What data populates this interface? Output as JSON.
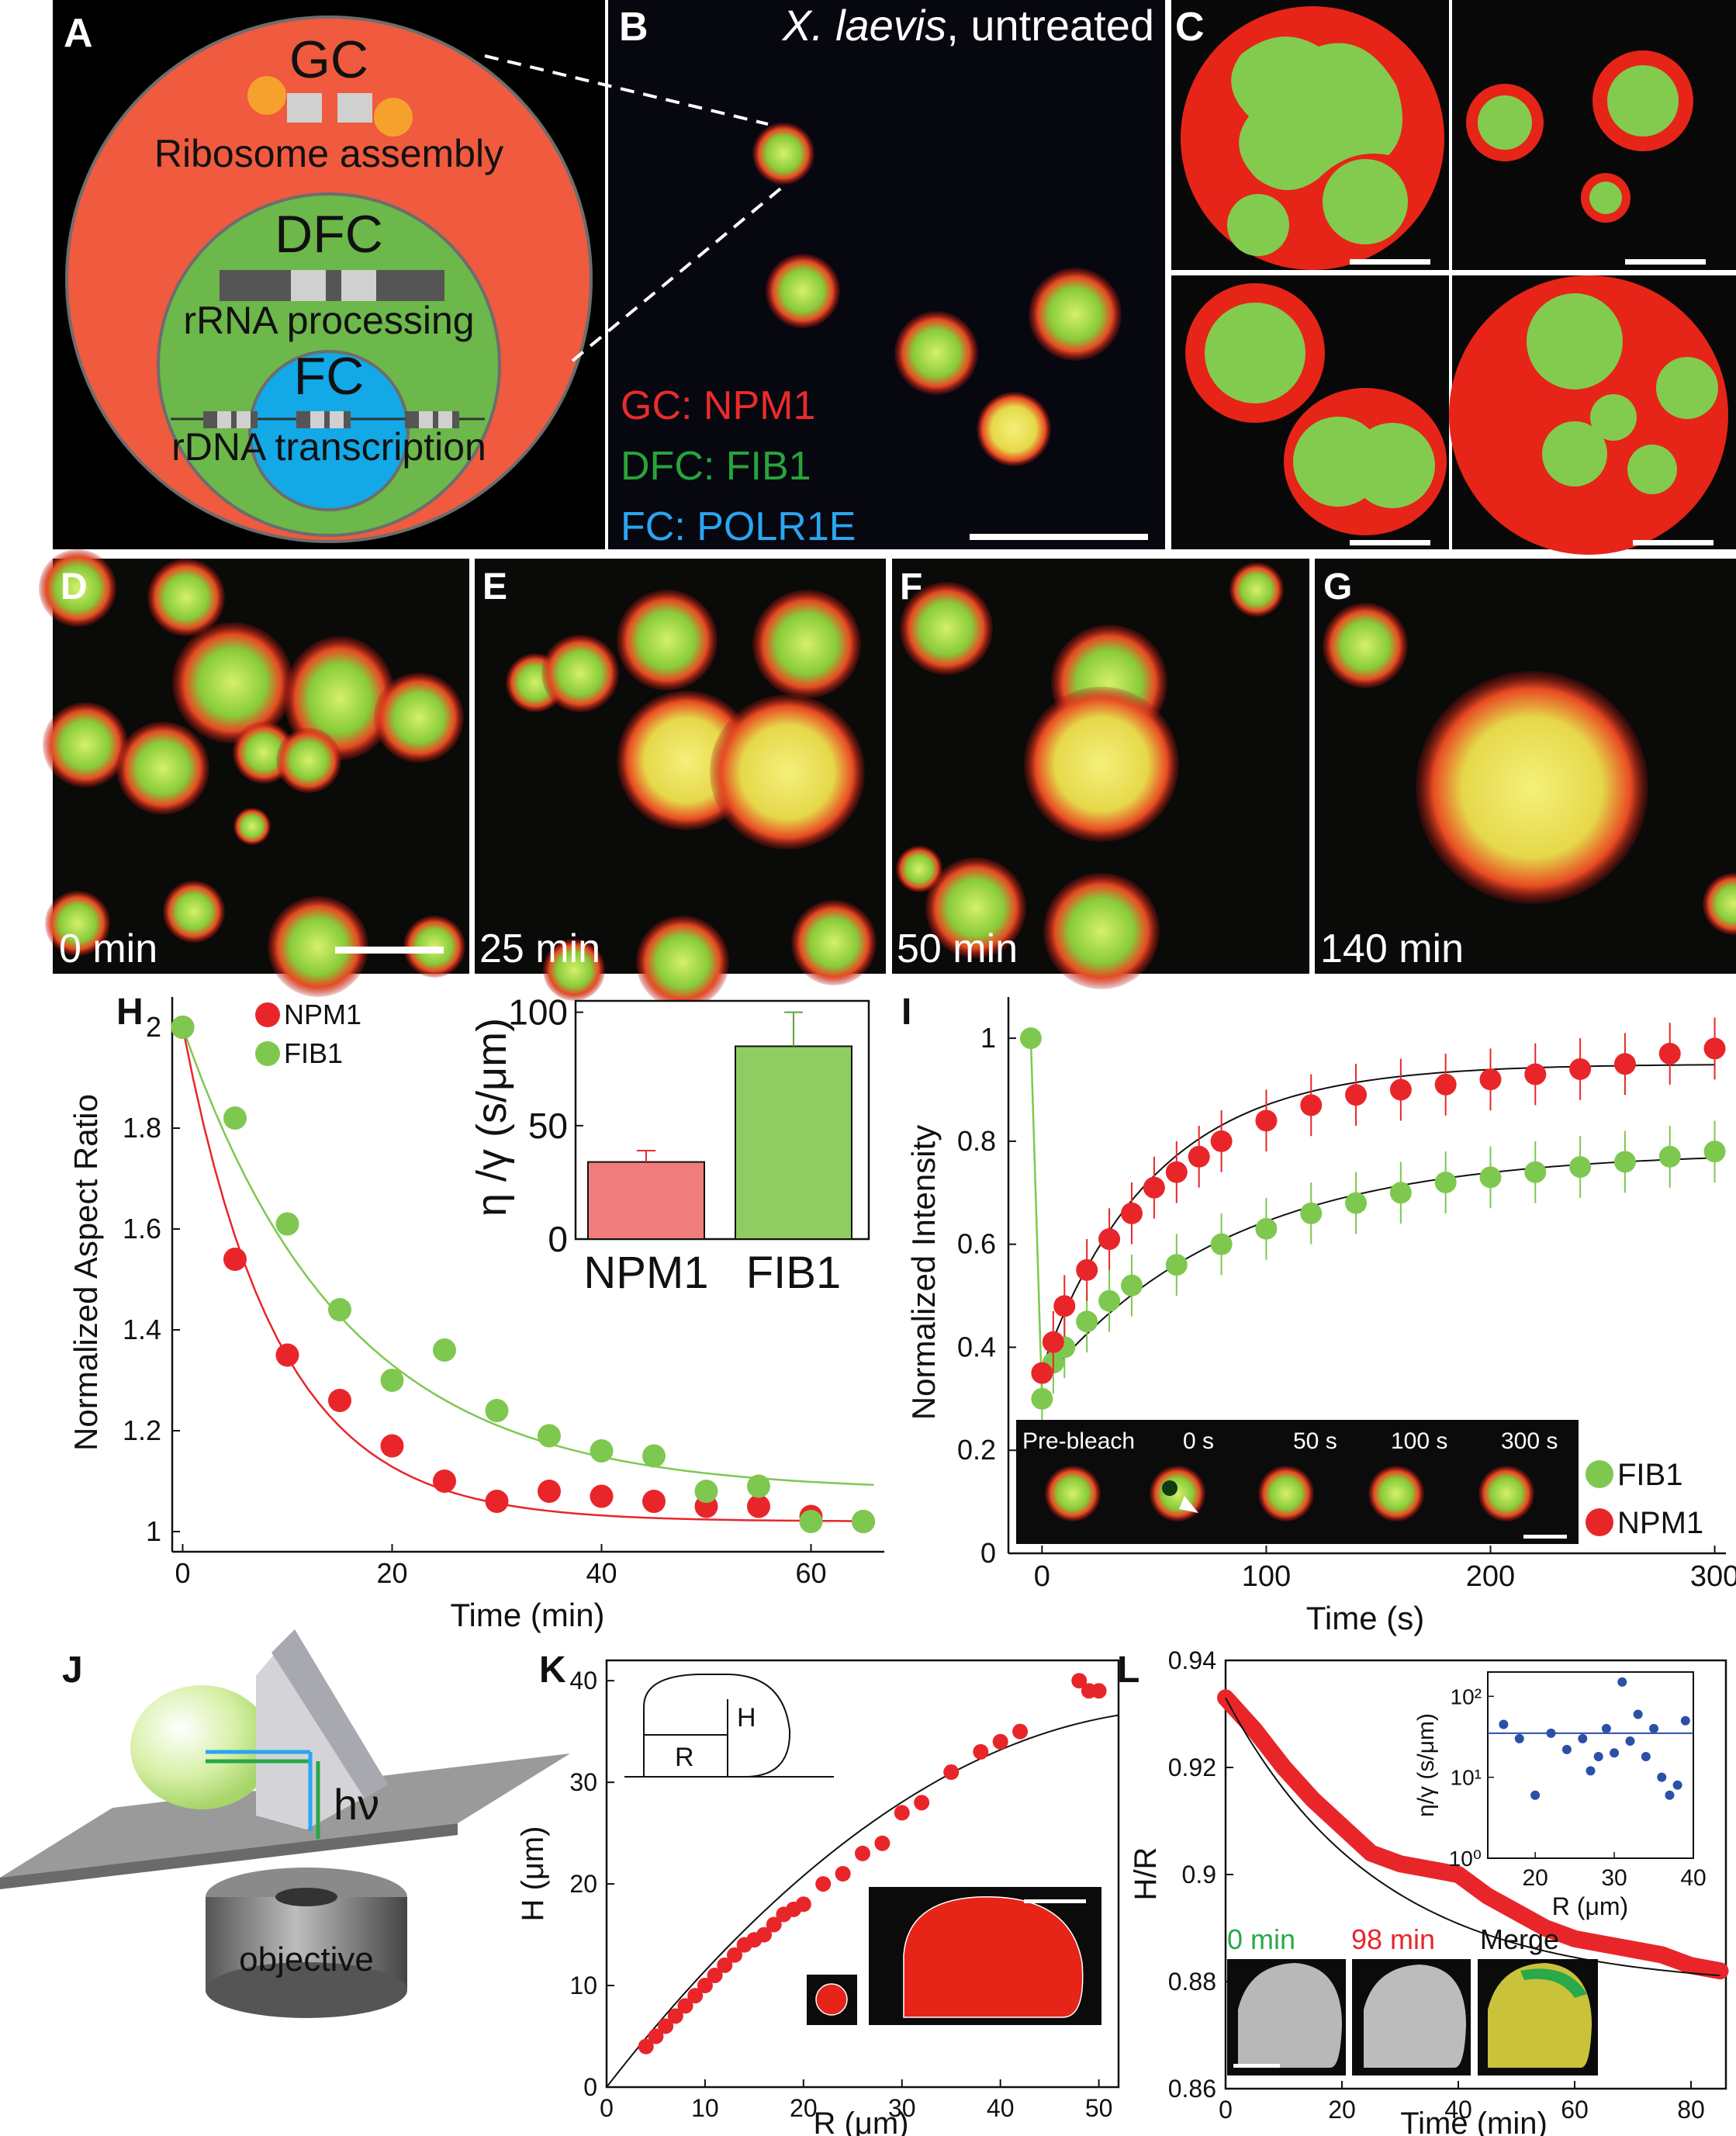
{
  "figure": {
    "letters": [
      "A",
      "B",
      "C",
      "D",
      "E",
      "F",
      "G",
      "H",
      "I",
      "J",
      "K",
      "L"
    ]
  },
  "panel_a": {
    "gc": "GC",
    "gc_sub": "Ribosome assembly",
    "dfc": "DFC",
    "dfc_sub": "rRNA processing",
    "fc": "FC",
    "fc_sub": "rDNA transcription",
    "colors": {
      "gc": "#f05a3e",
      "dfc": "#6cb84a",
      "fc": "#13a8e6"
    }
  },
  "panel_b": {
    "title_italic": "X. laevis",
    "title_rest": ", untreated",
    "legend": [
      {
        "text": "GC: NPM1",
        "color": "#ea2b2b"
      },
      {
        "text": "DFC: FIB1",
        "color": "#27a53a"
      },
      {
        "text": "FC: POLR1E",
        "color": "#2aa6f0"
      }
    ]
  },
  "panel_dg": {
    "times": [
      "0 min",
      "25 min",
      "50 min",
      "140 min"
    ]
  },
  "chart_h": {
    "type": "scatter",
    "xlabel": "Time (min)",
    "ylabel": "Normalized Aspect Ratio",
    "xlim": [
      -1,
      67
    ],
    "ylim": [
      0.96,
      2.06
    ],
    "xticks": [
      "0",
      "20",
      "40",
      "60"
    ],
    "yticks": [
      "1",
      "1.2",
      "1.4",
      "1.6",
      "1.8",
      "2"
    ],
    "legend": [
      "NPM1",
      "FIB1"
    ],
    "series": [
      {
        "name": "NPM1",
        "color": "#e8262a",
        "x": [
          0,
          5,
          10,
          15,
          20,
          25,
          30,
          35,
          40,
          45,
          50,
          55,
          60,
          65
        ],
        "y": [
          2.0,
          1.54,
          1.35,
          1.26,
          1.17,
          1.1,
          1.06,
          1.08,
          1.07,
          1.06,
          1.05,
          1.05,
          1.03,
          1.02
        ]
      },
      {
        "name": "FIB1",
        "color": "#7ec850",
        "x": [
          0,
          5,
          10,
          15,
          20,
          25,
          30,
          35,
          40,
          45,
          50,
          55,
          60,
          65
        ],
        "y": [
          2.0,
          1.82,
          1.61,
          1.44,
          1.3,
          1.36,
          1.24,
          1.19,
          1.16,
          1.15,
          1.08,
          1.09,
          1.02,
          1.02
        ]
      }
    ],
    "inset": {
      "type": "bar",
      "ylabel": "η /γ (s/μm)",
      "categories": [
        "NPM1",
        "FIB1"
      ],
      "values": [
        34,
        85
      ],
      "errors": [
        5,
        15
      ],
      "ylim": [
        0,
        105
      ],
      "yticks": [
        "0",
        "50",
        "100"
      ],
      "colors": [
        "#f07c7c",
        "#8fcd63"
      ]
    }
  },
  "chart_i": {
    "type": "scatter",
    "xlabel": "Time (s)",
    "ylabel": "Normalized Intensity",
    "xlim": [
      -15,
      305
    ],
    "ylim": [
      0,
      1.08
    ],
    "xticks": [
      "0",
      "100",
      "200",
      "300"
    ],
    "yticks": [
      "0",
      "0.2",
      "0.4",
      "0.6",
      "0.8",
      "1"
    ],
    "legend": [
      "FIB1",
      "NPM1"
    ],
    "series": [
      {
        "name": "FIB1",
        "color": "#7ec850",
        "x": [
          -5,
          0,
          5,
          10,
          20,
          30,
          40,
          60,
          80,
          100,
          120,
          140,
          160,
          180,
          200,
          220,
          240,
          260,
          280,
          300
        ],
        "y": [
          1.0,
          0.3,
          0.37,
          0.4,
          0.45,
          0.49,
          0.52,
          0.56,
          0.6,
          0.63,
          0.66,
          0.68,
          0.7,
          0.72,
          0.73,
          0.74,
          0.75,
          0.76,
          0.77,
          0.78
        ]
      },
      {
        "name": "NPM1",
        "color": "#e8262a",
        "x": [
          0,
          5,
          10,
          20,
          30,
          40,
          50,
          60,
          70,
          80,
          100,
          120,
          140,
          160,
          180,
          200,
          220,
          240,
          260,
          280,
          300
        ],
        "y": [
          0.35,
          0.41,
          0.48,
          0.55,
          0.61,
          0.66,
          0.71,
          0.74,
          0.77,
          0.8,
          0.84,
          0.87,
          0.89,
          0.9,
          0.91,
          0.92,
          0.93,
          0.94,
          0.95,
          0.97,
          0.98
        ]
      }
    ],
    "inset_labels": [
      "Pre-bleach",
      "0 s",
      "50 s",
      "100 s",
      "300 s"
    ]
  },
  "panel_j": {
    "hv": "hν",
    "objective": "objective"
  },
  "chart_k": {
    "type": "scatter",
    "xlabel": "R (μm)",
    "ylabel": "H (μm)",
    "xlim": [
      0,
      52
    ],
    "ylim": [
      0,
      42
    ],
    "xticks": [
      "0",
      "10",
      "20",
      "30",
      "40",
      "50"
    ],
    "yticks": [
      "0",
      "10",
      "20",
      "30",
      "40"
    ],
    "inset_labels": {
      "h": "H",
      "r": "R"
    },
    "series": [
      {
        "name": "",
        "color": "#e8262a",
        "x": [
          4,
          5,
          6,
          7,
          8,
          9,
          10,
          11,
          12,
          13,
          14,
          15,
          16,
          17,
          18,
          19,
          20,
          22,
          24,
          26,
          28,
          30,
          32,
          35,
          38,
          40,
          42,
          48,
          49,
          50
        ],
        "y": [
          4,
          5,
          6,
          7,
          8,
          9,
          10,
          11,
          12,
          13,
          14,
          14.5,
          15,
          16,
          17,
          17.5,
          18,
          20,
          21,
          23,
          24,
          27,
          28,
          31,
          33,
          34,
          35,
          40,
          39,
          39
        ]
      }
    ]
  },
  "chart_l": {
    "type": "line",
    "xlabel": "Time (min)",
    "ylabel": "H/R",
    "xlim": [
      0,
      86
    ],
    "ylim": [
      0.86,
      0.94
    ],
    "xticks": [
      "0",
      "20",
      "40",
      "60",
      "80"
    ],
    "yticks": [
      "0.86",
      "0.88",
      "0.9",
      "0.92",
      "0.94"
    ],
    "series": [
      {
        "name": "",
        "color": "#e8262a",
        "x": [
          0,
          5,
          10,
          15,
          20,
          25,
          30,
          35,
          40,
          45,
          50,
          55,
          60,
          65,
          70,
          75,
          80,
          85
        ],
        "y": [
          0.933,
          0.927,
          0.92,
          0.914,
          0.909,
          0.904,
          0.902,
          0.901,
          0.9,
          0.896,
          0.893,
          0.89,
          0.888,
          0.887,
          0.886,
          0.885,
          0.883,
          0.882
        ]
      }
    ],
    "inset": {
      "type": "scatter",
      "xlabel": "R (μm)",
      "ylabel": "η/γ (s/μm)",
      "xticks": [
        "20",
        "30",
        "40"
      ],
      "xlim": [
        14,
        40
      ],
      "x": [
        16,
        18,
        20,
        22,
        24,
        26,
        27,
        28,
        29,
        30,
        31,
        32,
        33,
        34,
        35,
        36,
        37,
        38,
        39
      ],
      "y": [
        45,
        30,
        6,
        35,
        22,
        30,
        12,
        18,
        40,
        20,
        150,
        28,
        60,
        18,
        40,
        10,
        6,
        8,
        50
      ],
      "line": 35,
      "color": "#2c4fa8"
    },
    "micro_labels": [
      {
        "text": "0 min",
        "color": "#2aa84a"
      },
      {
        "text": "98 min",
        "color": "#e8262a"
      },
      {
        "text": "Merge",
        "color": "#111111"
      }
    ]
  }
}
